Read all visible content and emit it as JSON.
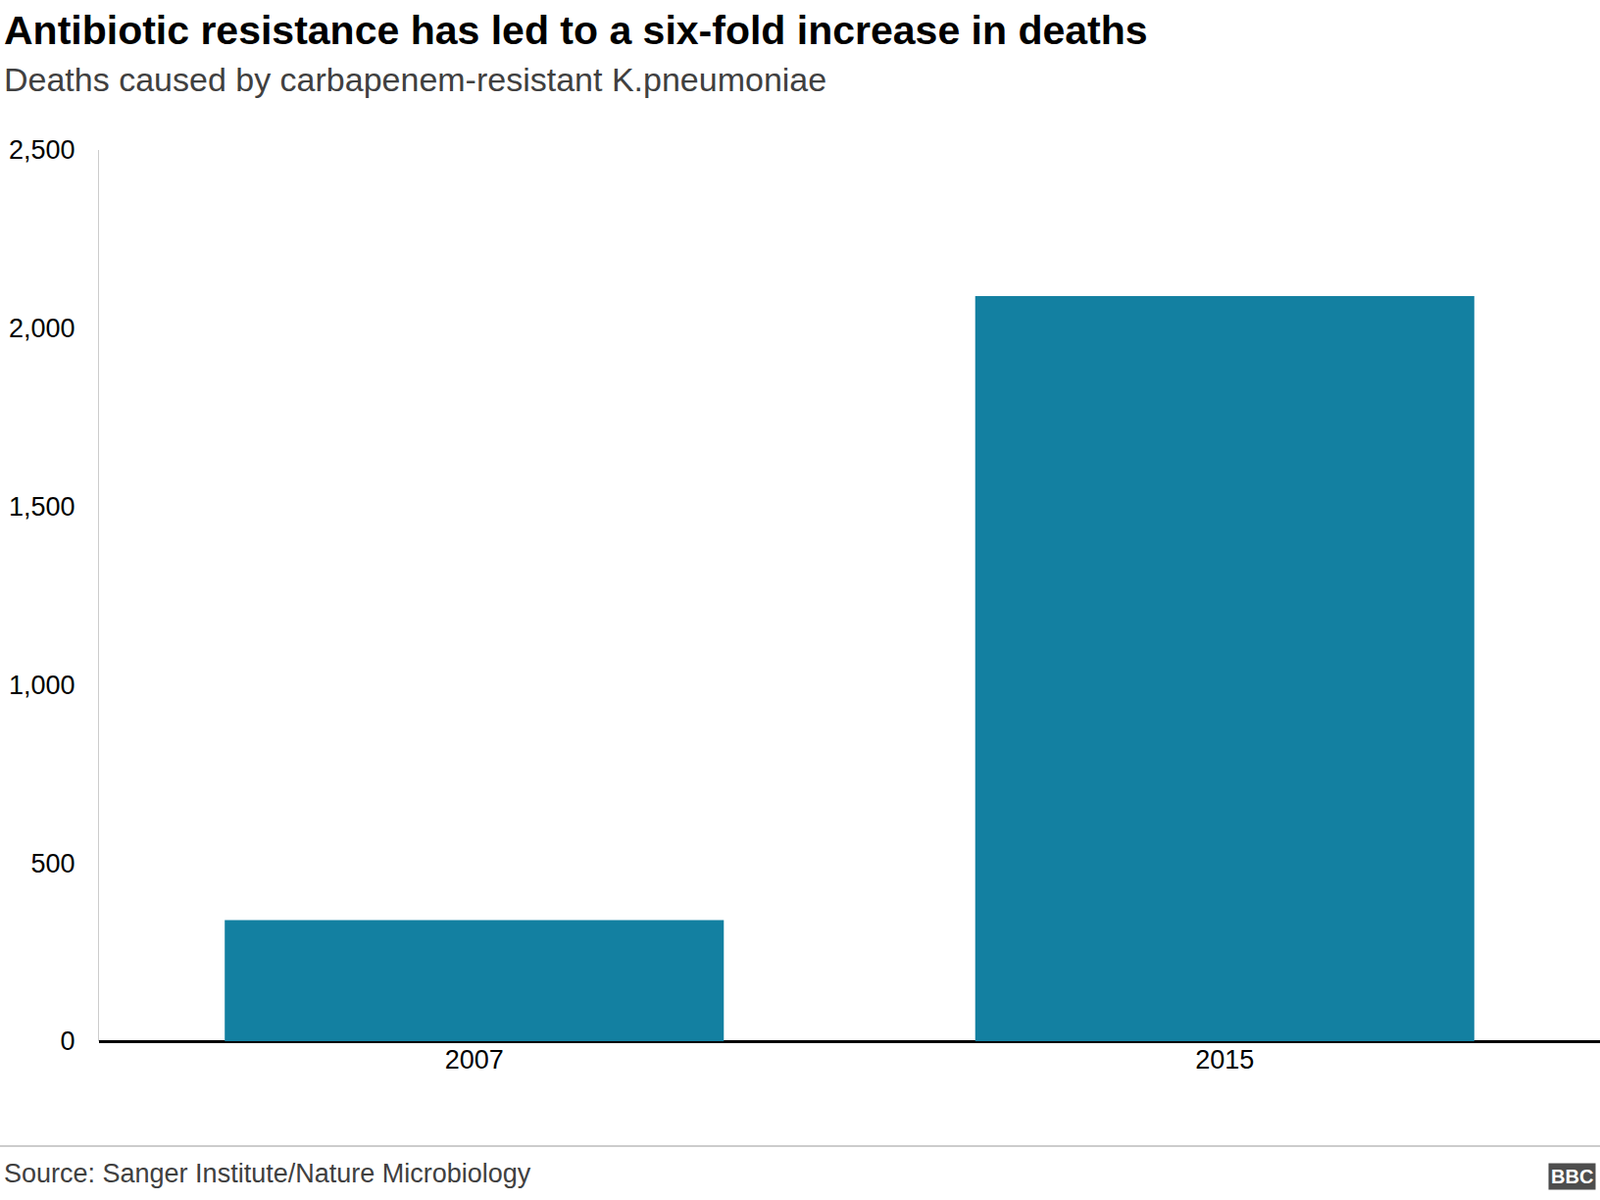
{
  "chart_data": {
    "type": "bar",
    "title": "Antibiotic resistance has led to a six-fold increase in deaths",
    "subtitle": "Deaths caused by carbapenem-resistant K.pneumoniae",
    "categories": [
      "2007",
      "2015"
    ],
    "values": [
      340,
      2090
    ],
    "color": "#1380a1",
    "ylim": [
      0,
      2500
    ],
    "yticks": [
      0,
      500,
      {
        "value": 1000,
        "label": "1,000"
      },
      {
        "value": 1500,
        "label": "1,500"
      },
      {
        "value": 2000,
        "label": "2,000"
      },
      {
        "value": 2500,
        "label": "2,500"
      }
    ],
    "grid": false,
    "source": "Source: Sanger Institute/Nature Microbiology",
    "logo": "BBC"
  }
}
